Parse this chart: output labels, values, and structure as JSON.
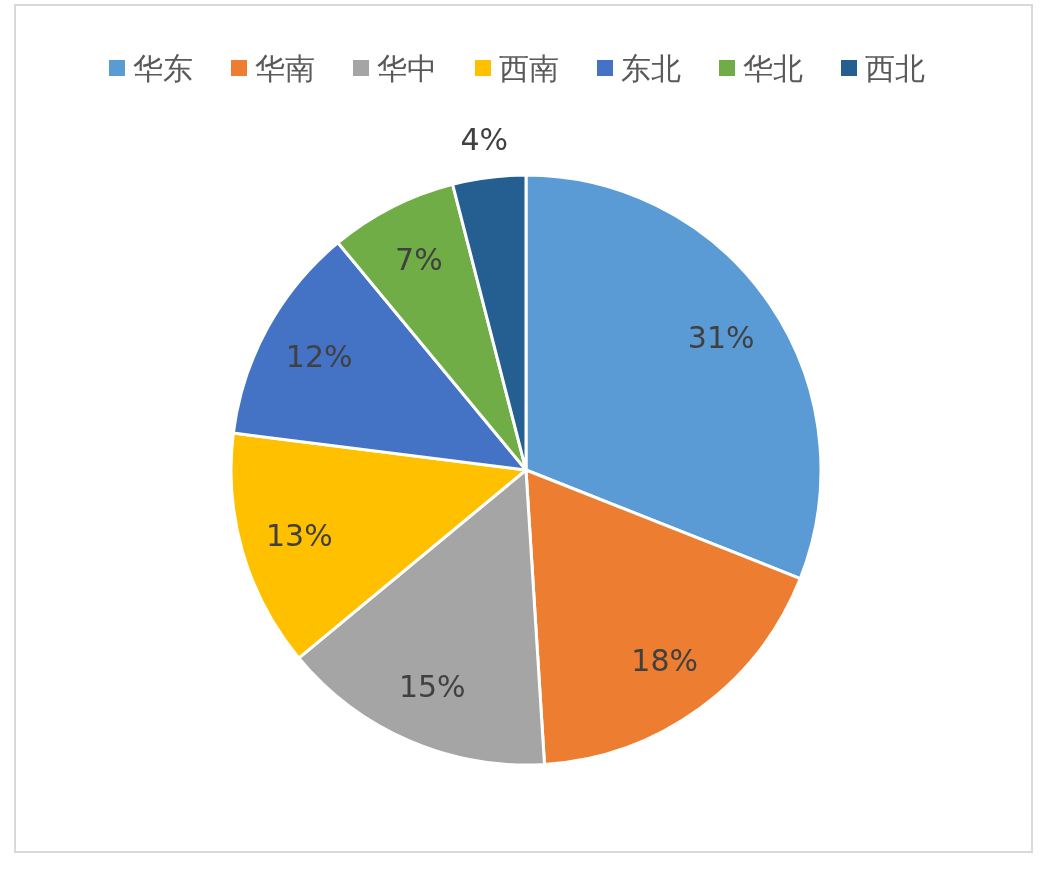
{
  "chart_data": {
    "type": "pie",
    "categories": [
      "华东",
      "华南",
      "华中",
      "西南",
      "东北",
      "华北",
      "西北"
    ],
    "values": [
      31,
      18,
      15,
      13,
      12,
      7,
      4
    ],
    "colors": [
      "#5b9bd5",
      "#ed7d31",
      "#a5a5a5",
      "#ffc000",
      "#4472c4",
      "#70ad47",
      "#255e91"
    ],
    "value_labels": [
      "31%",
      "18%",
      "15%",
      "13%",
      "12%",
      "7%",
      "4%"
    ],
    "legend": "top"
  }
}
